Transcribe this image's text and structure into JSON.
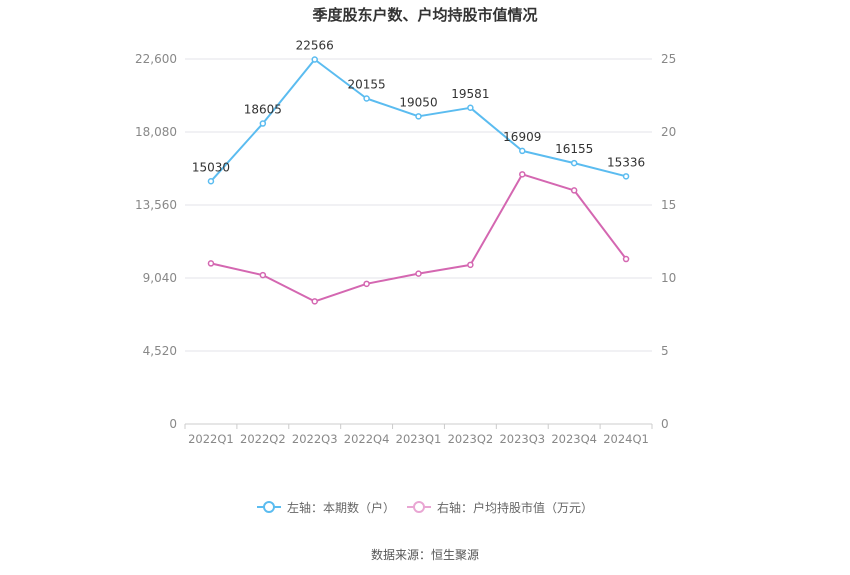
{
  "chart_data": {
    "type": "line",
    "title": "季度股东户数、户均持股市值情况",
    "categories": [
      "2022Q1",
      "2022Q2",
      "2022Q3",
      "2022Q4",
      "2023Q1",
      "2023Q2",
      "2023Q3",
      "2023Q4",
      "2024Q1"
    ],
    "y_left": {
      "ticks": [
        "0",
        "4,520",
        "9,040",
        "13,560",
        "18,080",
        "22,600"
      ],
      "range": [
        0,
        22600
      ]
    },
    "y_right": {
      "ticks": [
        "0",
        "5",
        "10",
        "15",
        "20",
        "25"
      ],
      "range": [
        0,
        25
      ]
    },
    "series": [
      {
        "name": "左轴：本期数（户）",
        "axis": "left",
        "color": "#5bbcf0",
        "values": [
          15030,
          18605,
          22566,
          20155,
          19050,
          19581,
          16909,
          16155,
          15336
        ],
        "labels": [
          "15030",
          "18605",
          "22566",
          "20155",
          "19050",
          "19581",
          "16909",
          "16155",
          "15336"
        ]
      },
      {
        "name": "右轴：户均持股市值（万元）",
        "axis": "right",
        "color": "#d467b1",
        "values": [
          11.0,
          10.2,
          8.4,
          9.6,
          10.3,
          10.9,
          17.1,
          16.0,
          11.3
        ]
      }
    ],
    "grid": true,
    "legend_position": "bottom"
  },
  "source_text": "数据来源：恒生聚源"
}
